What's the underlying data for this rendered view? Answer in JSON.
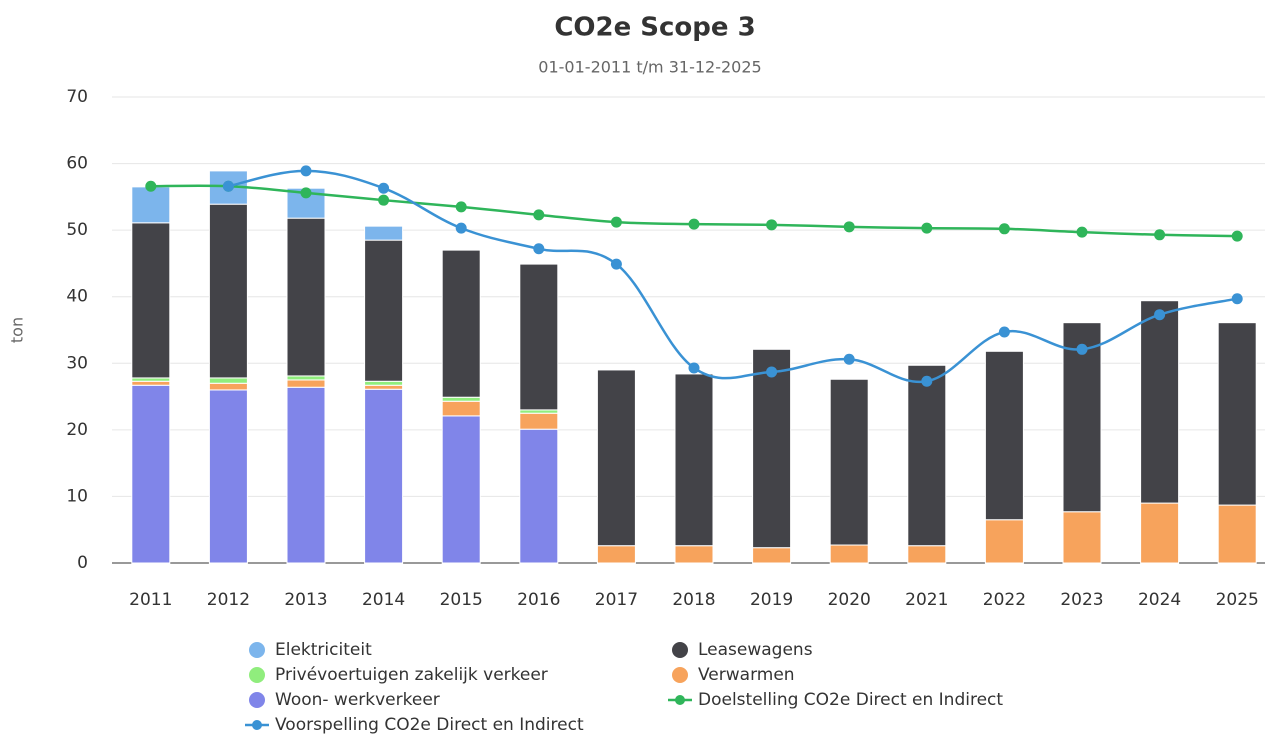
{
  "chart_data": {
    "type": "stacked-bar-line",
    "title": "CO2e Scope 3",
    "subtitle": "01-01-2011 t/m 31-12-2025",
    "y_label": "ton",
    "categories": [
      "2011",
      "2012",
      "2013",
      "2014",
      "2015",
      "2016",
      "2017",
      "2018",
      "2019",
      "2020",
      "2021",
      "2022",
      "2023",
      "2024",
      "2025"
    ],
    "ylim": [
      0,
      70
    ],
    "yticks": [
      0,
      10,
      20,
      30,
      40,
      50,
      60,
      70
    ],
    "grid": true,
    "series": [
      {
        "name": "Elektriciteit",
        "type": "bar",
        "color": "#7cb5ec",
        "values": [
          5.4,
          5.0,
          4.5,
          2.1,
          0,
          0,
          0,
          0,
          0,
          0,
          0,
          0,
          0,
          0,
          0
        ]
      },
      {
        "name": "Leasewagens",
        "type": "bar",
        "color": "#434348",
        "values": [
          23.3,
          26.1,
          23.7,
          21.2,
          22.1,
          21.9,
          26.4,
          25.8,
          29.8,
          24.9,
          27.1,
          25.3,
          28.4,
          30.4,
          27.4
        ]
      },
      {
        "name": "Privévoertuigen zakelijk verkeer",
        "type": "bar",
        "color": "#90ed7d",
        "values": [
          0.5,
          0.8,
          0.6,
          0.6,
          0.6,
          0.5,
          0,
          0,
          0,
          0,
          0,
          0,
          0,
          0,
          0
        ]
      },
      {
        "name": "Verwarmen",
        "type": "bar",
        "color": "#f7a35c",
        "values": [
          0.6,
          1.0,
          1.1,
          0.6,
          2.2,
          2.4,
          2.6,
          2.6,
          2.3,
          2.7,
          2.6,
          6.5,
          7.7,
          9.0,
          8.7
        ]
      },
      {
        "name": "Woon- werkverkeer",
        "type": "bar",
        "color": "#8085e9",
        "values": [
          26.7,
          26.0,
          26.4,
          26.1,
          22.1,
          20.1,
          0,
          0,
          0,
          0,
          0,
          0,
          0,
          0,
          0
        ]
      },
      {
        "name": "Doelstelling CO2e Direct en Indirect",
        "type": "line",
        "color": "#2fb55a",
        "values": [
          56.6,
          56.6,
          55.6,
          54.5,
          53.5,
          52.3,
          51.2,
          50.9,
          50.8,
          50.5,
          50.3,
          50.2,
          49.7,
          49.3,
          49.1
        ]
      },
      {
        "name": "Voorspelling CO2e Direct en Indirect",
        "type": "line",
        "color": "#3a92d4",
        "values": [
          null,
          56.6,
          58.9,
          56.3,
          50.3,
          47.2,
          44.9,
          29.3,
          28.7,
          30.6,
          27.3,
          34.7,
          32.1,
          37.3,
          39.7
        ]
      }
    ]
  }
}
